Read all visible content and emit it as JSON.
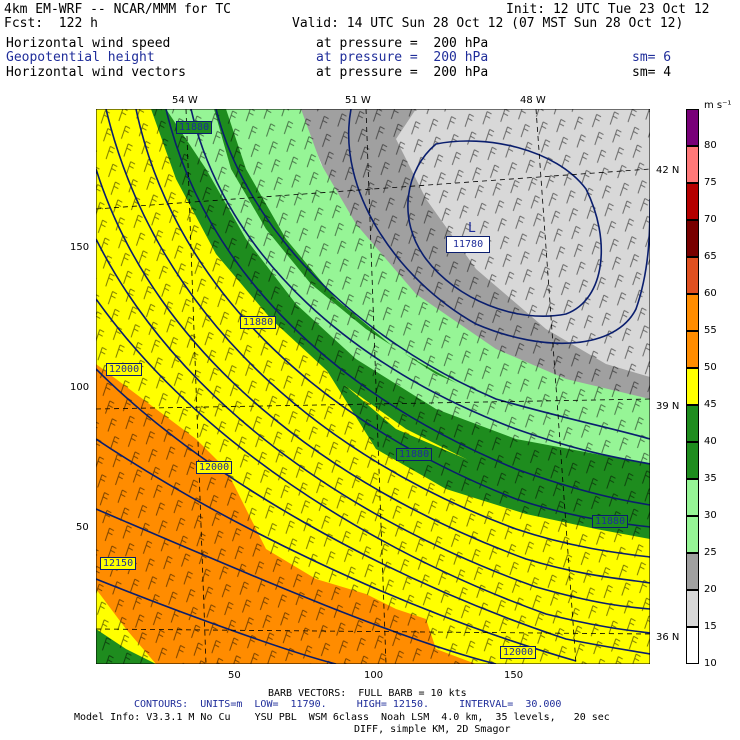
{
  "header": {
    "model_title": "4km EM-WRF -- NCAR/MMM for TC",
    "init": "Init: 12 UTC Tue 23 Oct 12",
    "fcst": "Fcst:  122 h",
    "valid": "Valid: 14 UTC Sun 28 Oct 12 (07 MST Sun 28 Oct 12)"
  },
  "fields": [
    {
      "name": "Horizontal wind speed",
      "level": "at pressure =  200 hPa",
      "sm": ""
    },
    {
      "name": "Geopotential height",
      "level": "at pressure =  200 hPa",
      "sm": "sm= 6"
    },
    {
      "name": "Horizontal wind vectors",
      "level": "at pressure =  200 hPa",
      "sm": "sm= 4"
    }
  ],
  "colors": {
    "c10": "#ffffff",
    "c15": "#d8d8d8",
    "c20": "#a0a0a0",
    "c25": "#96f596",
    "c30": "#1e8c1e",
    "c40": "#ffff00",
    "c50": "#ff8c00",
    "c60": "#e05020",
    "c65": "#780000",
    "c70": "#b40000",
    "c75": "#ff7878",
    "c80": "#780078",
    "contour": "#0a1e6e",
    "blue_text": "#1f2d9a"
  },
  "legend": {
    "unit": "m s⁻¹",
    "labels": [
      "80",
      "75",
      "70",
      "65",
      "60",
      "55",
      "50",
      "45",
      "40",
      "35",
      "30",
      "25",
      "20",
      "15",
      "10"
    ]
  },
  "axes": {
    "top_lon": [
      "54 W",
      "51 W",
      "48 W"
    ],
    "right_lat": [
      "42 N",
      "39 N",
      "36 N"
    ],
    "left_ticks": [
      "150",
      "100",
      "50"
    ],
    "bottom_ticks": [
      "50",
      "100",
      "150"
    ]
  },
  "contour_labels": [
    "11880",
    "L",
    "11780",
    "11880",
    "12000",
    "11880",
    "12000",
    "11880",
    "12150",
    "12000"
  ],
  "footer": {
    "barb": "BARB VECTORS:  FULL BARB = 10 kts",
    "contours": "CONTOURS:  UNITS=m  LOW=  11790.     HIGH= 12150.     INTERVAL=  30.000",
    "model_info": "Model Info: V3.3.1 M No Cu    YSU PBL  WSM 6class  Noah LSM  4.0 km,  35 levels,   20 sec",
    "diff": "DIFF, simple KM, 2D Smagor"
  }
}
